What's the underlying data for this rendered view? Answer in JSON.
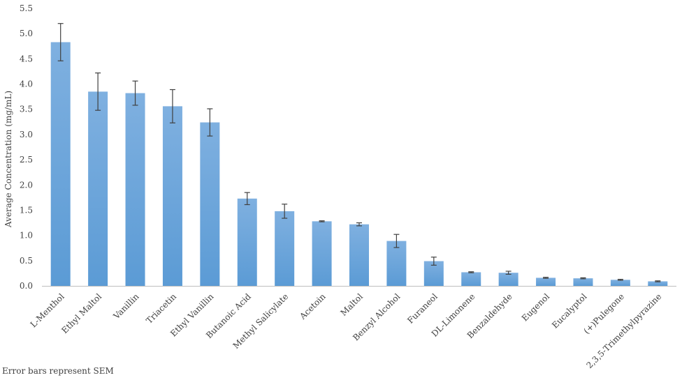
{
  "chart_data": {
    "type": "bar",
    "title": "",
    "xlabel": "",
    "ylabel": "Average Concentration  (mg/mL)",
    "ylim": [
      0,
      5.5
    ],
    "ytick_step": 0.5,
    "yticks": [
      "0.0",
      "0.5",
      "1.0",
      "1.5",
      "2.0",
      "2.5",
      "3.0",
      "3.5",
      "4.0",
      "4.5",
      "5.0",
      "5.5"
    ],
    "grid": false,
    "legend": "none",
    "categories": [
      "L-Menthol",
      "Ethyl Maltol",
      "Vanillin",
      "Triacetin",
      "Ethyl Vanillin",
      "Butanoic Acid",
      "Methyl Salicylate",
      "Acetoin",
      "Maltol",
      "Benzyl Alcohol",
      "Furaneol",
      "DL-Limonene",
      "Benzaldehyde",
      "Eugenol",
      "Eucalyptol",
      "(+)Pulegone",
      "2,3,5-Trimethylpyrazine"
    ],
    "values": [
      4.83,
      3.85,
      3.82,
      3.56,
      3.24,
      1.73,
      1.48,
      1.28,
      1.22,
      0.89,
      0.49,
      0.27,
      0.26,
      0.16,
      0.15,
      0.12,
      0.09
    ],
    "errors": [
      0.37,
      0.37,
      0.24,
      0.33,
      0.27,
      0.12,
      0.14,
      0.01,
      0.03,
      0.13,
      0.08,
      0.01,
      0.03,
      0.01,
      0.01,
      0.01,
      0.01
    ],
    "bar_color": "#5B9BD5",
    "bar_color_light": "#7FB0E0",
    "axis_color": "#bfbfbf",
    "error_color": "#404040",
    "note": "Error bars represent SEM"
  }
}
